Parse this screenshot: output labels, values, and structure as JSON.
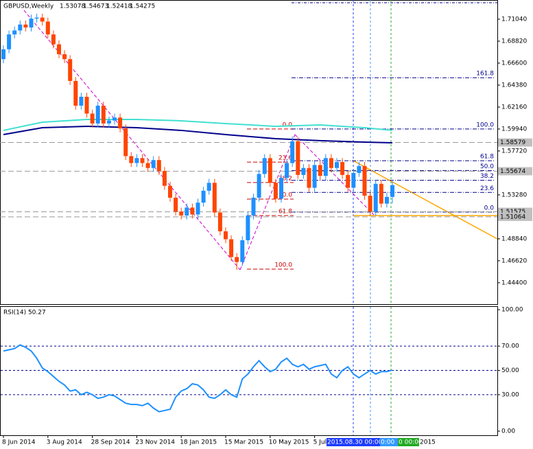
{
  "chart_data": [
    {
      "type": "candlestick",
      "title": "GBPUSD,Weekly",
      "ohlc_text": [
        "1.53078",
        "1.54673",
        "1.52418",
        "1.54275"
      ],
      "categories": [
        "8 Jun 2014",
        null,
        null,
        null,
        null,
        null,
        null,
        null,
        "3 Aug 2014",
        null,
        null,
        null,
        null,
        null,
        null,
        null,
        "28 Sep 2014",
        null,
        null,
        null,
        null,
        null,
        null,
        null,
        "23 Nov 2014",
        null,
        null,
        null,
        null,
        null,
        null,
        null,
        "18 Jan 2015",
        null,
        null,
        null,
        null,
        null,
        null,
        null,
        "15 Mar 2015",
        null,
        null,
        null,
        null,
        null,
        null,
        null,
        "10 May 2015",
        null,
        null,
        null,
        null,
        null,
        null,
        null,
        "5 Jul 2015",
        null,
        null,
        null,
        null,
        null,
        null,
        null,
        null,
        null,
        null,
        null,
        null,
        null,
        null
      ],
      "open": [
        1.67,
        1.68,
        1.695,
        1.699,
        1.705,
        1.702,
        1.711,
        1.712,
        1.708,
        1.695,
        1.685,
        1.675,
        1.67,
        1.648,
        1.623,
        1.632,
        1.615,
        1.605,
        1.623,
        1.605,
        1.608,
        1.611,
        1.6,
        1.572,
        1.565,
        1.57,
        1.565,
        1.56,
        1.568,
        1.557,
        1.542,
        1.53,
        1.516,
        1.512,
        1.52,
        1.513,
        1.525,
        1.537,
        1.545,
        1.515,
        1.496,
        1.488,
        1.47,
        1.465,
        1.487,
        1.512,
        1.53,
        1.554,
        1.57,
        1.545,
        1.529,
        1.55,
        1.565,
        1.587,
        1.553,
        1.56,
        1.54,
        1.563,
        1.552,
        1.57,
        1.56,
        1.566,
        1.553,
        1.54,
        1.555,
        1.562,
        1.532,
        1.516,
        1.544,
        1.524,
        1.53078
      ],
      "high": [
        1.684,
        1.699,
        1.703,
        1.709,
        1.709,
        1.715,
        1.716,
        1.716,
        1.712,
        1.699,
        1.689,
        1.679,
        1.674,
        1.652,
        1.636,
        1.636,
        1.619,
        1.627,
        1.627,
        1.612,
        1.615,
        1.615,
        1.604,
        1.576,
        1.574,
        1.574,
        1.569,
        1.572,
        1.572,
        1.561,
        1.546,
        1.534,
        1.52,
        1.524,
        1.524,
        1.529,
        1.541,
        1.549,
        1.549,
        1.519,
        1.5,
        1.492,
        1.474,
        1.491,
        1.516,
        1.534,
        1.558,
        1.574,
        1.574,
        1.549,
        1.554,
        1.569,
        1.592,
        1.591,
        1.564,
        1.564,
        1.567,
        1.567,
        1.574,
        1.574,
        1.57,
        1.57,
        1.557,
        1.559,
        1.566,
        1.566,
        1.536,
        1.548,
        1.548,
        1.5348,
        1.54673
      ],
      "low": [
        1.666,
        1.676,
        1.691,
        1.695,
        1.698,
        1.698,
        1.707,
        1.704,
        1.691,
        1.681,
        1.671,
        1.666,
        1.644,
        1.619,
        1.619,
        1.611,
        1.601,
        1.601,
        1.601,
        1.601,
        1.604,
        1.596,
        1.568,
        1.561,
        1.561,
        1.561,
        1.556,
        1.556,
        1.553,
        1.538,
        1.526,
        1.512,
        1.508,
        1.508,
        1.509,
        1.509,
        1.521,
        1.533,
        1.511,
        1.492,
        1.484,
        1.466,
        1.457,
        1.461,
        1.483,
        1.508,
        1.526,
        1.55,
        1.541,
        1.525,
        1.525,
        1.546,
        1.561,
        1.549,
        1.549,
        1.536,
        1.536,
        1.548,
        1.548,
        1.556,
        1.556,
        1.549,
        1.536,
        1.536,
        1.551,
        1.528,
        1.512,
        1.512,
        1.52,
        1.52,
        1.52418
      ],
      "close": [
        1.68,
        1.695,
        1.699,
        1.705,
        1.702,
        1.711,
        1.712,
        1.708,
        1.695,
        1.685,
        1.675,
        1.67,
        1.648,
        1.623,
        1.632,
        1.615,
        1.605,
        1.623,
        1.605,
        1.608,
        1.611,
        1.6,
        1.572,
        1.565,
        1.57,
        1.565,
        1.56,
        1.568,
        1.557,
        1.542,
        1.53,
        1.516,
        1.512,
        1.52,
        1.513,
        1.525,
        1.537,
        1.545,
        1.515,
        1.496,
        1.488,
        1.47,
        1.465,
        1.487,
        1.512,
        1.53,
        1.554,
        1.57,
        1.545,
        1.529,
        1.55,
        1.565,
        1.587,
        1.553,
        1.56,
        1.54,
        1.563,
        1.552,
        1.57,
        1.56,
        1.566,
        1.553,
        1.54,
        1.555,
        1.562,
        1.532,
        1.516,
        1.544,
        1.524,
        1.53078,
        1.54275
      ],
      "up_color": "#1e90ff",
      "down_color": "#ff4500",
      "moving_averages": [
        {
          "color": "#00008b",
          "x": [
            0,
            7,
            15,
            24,
            32,
            40,
            49,
            57,
            65,
            70
          ],
          "values": [
            1.5938,
            1.6007,
            1.6021,
            1.6007,
            1.598,
            1.5938,
            1.5896,
            1.5876,
            1.5862,
            1.5855
          ]
        },
        {
          "color": "#40e0d0",
          "x": [
            0,
            7,
            15,
            24,
            32,
            40,
            49,
            57,
            65,
            70
          ],
          "values": [
            1.598,
            1.6063,
            1.6091,
            1.6091,
            1.6077,
            1.6049,
            1.6021,
            1.6035,
            1.6007,
            1.598
          ]
        }
      ],
      "ylim": [
        1.4224,
        1.7298
      ],
      "yticks": [
        {
          "value": 1.7104,
          "label": "1.71040"
        },
        {
          "value": 1.6882,
          "label": "1.68820"
        },
        {
          "value": 1.666,
          "label": "1.66600"
        },
        {
          "value": 1.6438,
          "label": "1.64380"
        },
        {
          "value": 1.6216,
          "label": "1.62160"
        },
        {
          "value": 1.5994,
          "label": "1.59940"
        },
        {
          "value": 1.5772,
          "label": "1.57720"
        },
        {
          "value": 1.5328,
          "label": "1.53280"
        },
        {
          "value": 1.4884,
          "label": "1.48840"
        },
        {
          "value": 1.4662,
          "label": "1.46620"
        },
        {
          "value": 1.444,
          "label": "1.44400"
        }
      ],
      "price_markers": [
        {
          "value": 1.58579,
          "label": "1.58579"
        },
        {
          "value": 1.55674,
          "label": "1.55674"
        },
        {
          "value": 1.51575,
          "label": "1.51575"
        },
        {
          "value": 1.51064,
          "label": "1.51064"
        }
      ],
      "fib_retracements": [
        {
          "color": "#cc0000",
          "price_0": 1.5994,
          "price_100": 1.4578,
          "levels": [
            {
              "value": 0,
              "label": "0.0"
            },
            23.6,
            38.2,
            {
              "value": 50,
              "label": "50.0"
            },
            61.8,
            {
              "value": 100,
              "label": "100.0"
            }
          ]
        },
        {
          "color": "#00008b",
          "price_0": 1.5155,
          "price_100": 1.5994,
          "levels": [
            {
              "value": 0,
              "label": "0.0"
            },
            23.6,
            38.2,
            {
              "value": 50,
              "label": "50.0"
            },
            61.8,
            {
              "value": 100,
              "label": "100.0"
            },
            161.8
          ]
        }
      ],
      "time_markers": [
        {
          "label": "2015.08.30 00:00",
          "color": "#1e3cff"
        },
        {
          "label": "0:00",
          "color": "#3399ff"
        },
        {
          "label": "0 00:00",
          "color": "#22aa22"
        },
        {
          "label": "2015",
          "color": "#ffffff"
        }
      ]
    },
    {
      "type": "line",
      "title": "RSI(14) 50.27",
      "color": "#1e90ff",
      "values": [
        66,
        67,
        68,
        71,
        69,
        66,
        60,
        52,
        49,
        45,
        41,
        38,
        33,
        34,
        30,
        32,
        30,
        27,
        28,
        30,
        29,
        26,
        23,
        22,
        22,
        21,
        23,
        19,
        16,
        17,
        18,
        28,
        33,
        35,
        39,
        38,
        34,
        28,
        27,
        30,
        34,
        30,
        28,
        43,
        47,
        53,
        58,
        53,
        49,
        51,
        57,
        60,
        55,
        53,
        55,
        51,
        53,
        54,
        55,
        47,
        44,
        50,
        53,
        47,
        44,
        47,
        50,
        47,
        49,
        49,
        50.27
      ],
      "ylim": [
        -9.6,
        102.3
      ],
      "yticks": [
        {
          "value": 100,
          "label": "100.00"
        },
        {
          "value": 70,
          "label": "70.00"
        },
        {
          "value": 50,
          "label": "50.00"
        },
        {
          "value": 30,
          "label": "30.00"
        },
        {
          "value": 0,
          "label": "0.00"
        }
      ],
      "levels": [
        70,
        50,
        30
      ],
      "level_color": "#00008b"
    }
  ]
}
